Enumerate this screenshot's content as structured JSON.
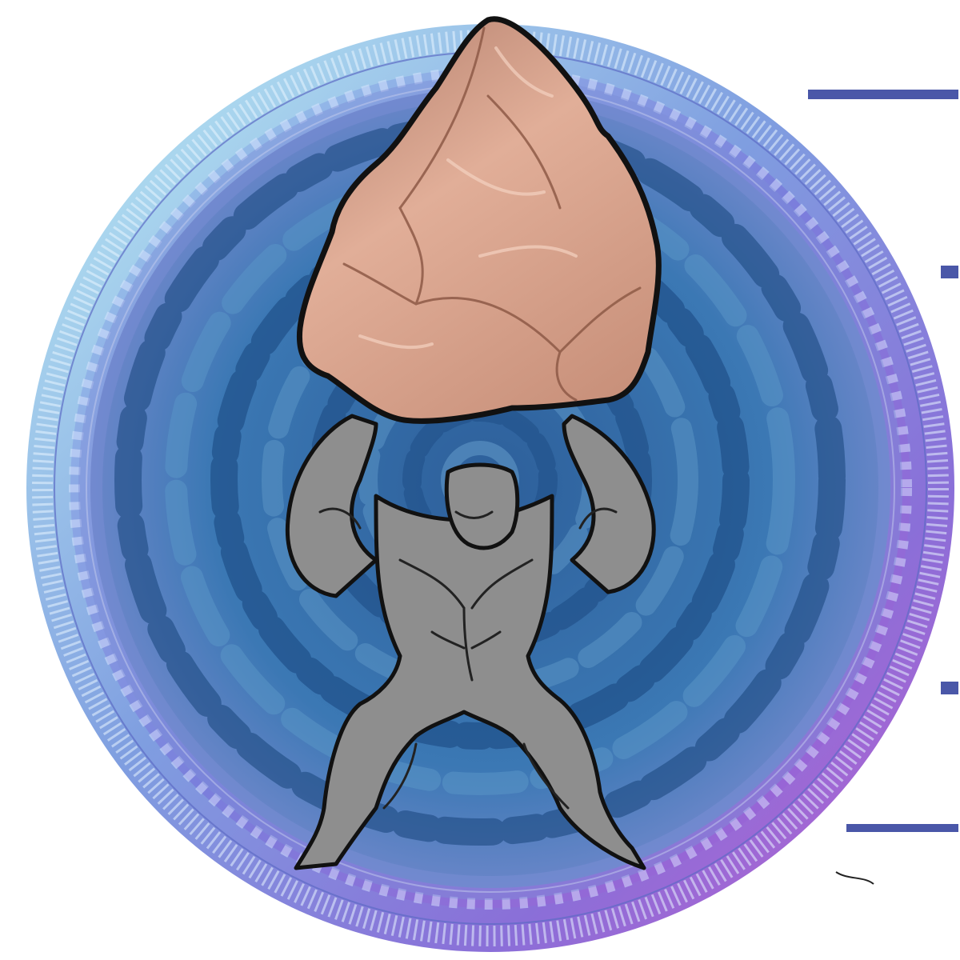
{
  "artwork": {
    "subject": "coin-medallion",
    "colors": {
      "rim_light": "#a8e6ee",
      "rim_mid": "#7f86d8",
      "rim_dark": "#b25fd0",
      "field_dark": "#1e4f86",
      "field_mid": "#3a78b6",
      "field_light": "#5e97c8",
      "rock_base": "#c99079",
      "rock_light": "#e6b8a2",
      "rock_shadow": "#9c6552",
      "figure_gray": "#8e8e8e",
      "outline": "#111111",
      "edge_mark": "#4a57a8"
    },
    "signature_text": "GB"
  }
}
